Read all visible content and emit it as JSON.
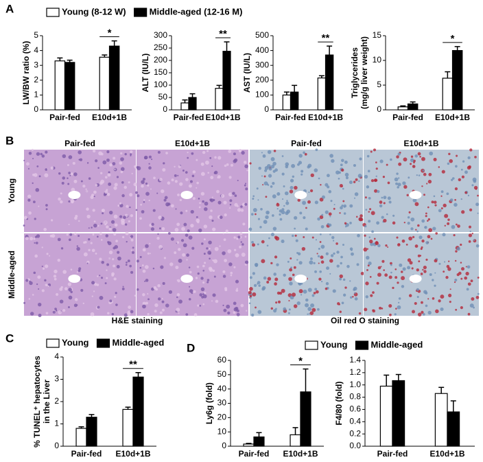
{
  "panels": [
    "A",
    "B",
    "C",
    "D"
  ],
  "histology": {
    "columns": [
      "Pair-fed",
      "E10d+1B",
      "Pair-fed",
      "E10d+1B"
    ],
    "rows": [
      "Young",
      "Middle-aged"
    ],
    "stains": [
      "H&E staining",
      "Oil red O staining"
    ]
  },
  "chart_data": [
    {
      "type": "bar",
      "ylabel": [
        "LW/BW ratio (%)"
      ],
      "categories": [
        "Pair-fed",
        "E10d+1B"
      ],
      "legend": true,
      "series": [
        {
          "name": "Young (8-12 W)",
          "color": "#ffffff",
          "values": [
            3.3,
            3.55
          ],
          "errors": [
            0.2,
            0.15
          ]
        },
        {
          "name": "Middle-aged (12-16 M)",
          "color": "#000000",
          "values": [
            3.2,
            4.3
          ],
          "errors": [
            0.15,
            0.35
          ]
        }
      ],
      "ylim": [
        0,
        5
      ],
      "yticks": [
        0,
        1,
        2,
        3,
        4,
        5
      ],
      "annotation": "*"
    },
    {
      "type": "bar",
      "ylabel": [
        "ALT (IU/L)"
      ],
      "categories": [
        "Pair-fed",
        "E10d+1B"
      ],
      "series": [
        {
          "color": "#ffffff",
          "values": [
            28,
            87
          ],
          "errors": [
            12,
            12
          ]
        },
        {
          "color": "#000000",
          "values": [
            50,
            237
          ],
          "errors": [
            15,
            38
          ]
        }
      ],
      "ylim": [
        0,
        300
      ],
      "yticks": [
        0,
        50,
        100,
        150,
        200,
        250,
        300
      ],
      "annotation": "**"
    },
    {
      "type": "bar",
      "ylabel": [
        "AST (IU/L)"
      ],
      "categories": [
        "Pair-fed",
        "E10d+1B"
      ],
      "series": [
        {
          "color": "#ffffff",
          "values": [
            100,
            215
          ],
          "errors": [
            20,
            15
          ]
        },
        {
          "color": "#000000",
          "values": [
            120,
            370
          ],
          "errors": [
            45,
            60
          ]
        }
      ],
      "ylim": [
        0,
        500
      ],
      "yticks": [
        0,
        100,
        200,
        300,
        400,
        500
      ],
      "annotation": "**"
    },
    {
      "type": "bar",
      "ylabel": [
        "Triglycerides",
        "(mg/g liver weight)"
      ],
      "categories": [
        "Pair-fed",
        "E10d+1B"
      ],
      "series": [
        {
          "color": "#ffffff",
          "values": [
            0.6,
            6.4
          ],
          "errors": [
            0.2,
            1.3
          ]
        },
        {
          "color": "#000000",
          "values": [
            1.2,
            12
          ],
          "errors": [
            0.4,
            0.8
          ]
        }
      ],
      "ylim": [
        0,
        15
      ],
      "yticks": [
        0,
        5,
        10,
        15
      ],
      "annotation": "*"
    },
    {
      "type": "bar",
      "ylabel": [
        "% TUNEL⁺ hepatocytes",
        "in the Liver"
      ],
      "categories": [
        "Pair-fed",
        "E10d+1B"
      ],
      "legend": true,
      "series": [
        {
          "name": "Young",
          "color": "#ffffff",
          "values": [
            0.8,
            1.65
          ],
          "errors": [
            0.07,
            0.1
          ]
        },
        {
          "name": "Middle-aged",
          "color": "#000000",
          "values": [
            1.3,
            3.1
          ],
          "errors": [
            0.12,
            0.2
          ]
        }
      ],
      "ylim": [
        0,
        4
      ],
      "yticks": [
        0,
        1,
        2,
        3,
        4
      ],
      "annotation": "**"
    },
    {
      "type": "bar",
      "ylabel": [
        "Ly6g (fold)"
      ],
      "categories": [
        "Pair-fed",
        "E10d+1B"
      ],
      "series": [
        {
          "color": "#ffffff",
          "values": [
            1.5,
            8
          ],
          "errors": [
            0.5,
            5
          ]
        },
        {
          "color": "#000000",
          "values": [
            6.5,
            38
          ],
          "errors": [
            3,
            16
          ]
        }
      ],
      "ylim": [
        0,
        60
      ],
      "yticks": [
        0,
        10,
        20,
        30,
        40,
        50,
        60
      ],
      "annotation": "*"
    },
    {
      "type": "bar",
      "ylabel": [
        "F4/80 (fold)"
      ],
      "categories": [
        "Pair-fed",
        "E10d+1B"
      ],
      "legend": true,
      "series": [
        {
          "name": "Young",
          "color": "#ffffff",
          "values": [
            0.98,
            0.86
          ],
          "errors": [
            0.18,
            0.1
          ]
        },
        {
          "name": "Middle-aged",
          "color": "#000000",
          "values": [
            1.07,
            0.56
          ],
          "errors": [
            0.1,
            0.18
          ]
        }
      ],
      "ylim": [
        0,
        1.4
      ],
      "yticks": [
        {
          "value": 0,
          "label": "0.0"
        },
        0.2,
        0.4,
        0.6,
        0.8,
        {
          "value": 1,
          "label": "1.0"
        },
        1.2,
        1.4
      ]
    }
  ]
}
